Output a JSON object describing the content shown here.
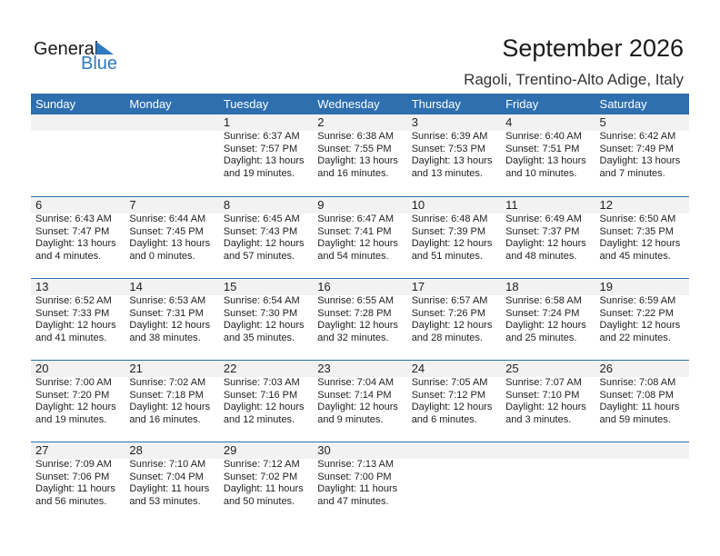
{
  "logo": {
    "general": "General",
    "blue": "Blue"
  },
  "title": "September 2026",
  "subtitle": "Ragoli, Trentino-Alto Adige, Italy",
  "colors": {
    "header": "#2e6fb0",
    "band": "#f2f2f2"
  },
  "weekdays": [
    "Sunday",
    "Monday",
    "Tuesday",
    "Wednesday",
    "Thursday",
    "Friday",
    "Saturday"
  ],
  "weeks": [
    [
      null,
      null,
      {
        "day": "1",
        "sunrise": "Sunrise: 6:37 AM",
        "sunset": "Sunset: 7:57 PM",
        "daylight1": "Daylight: 13 hours",
        "daylight2": "and 19 minutes."
      },
      {
        "day": "2",
        "sunrise": "Sunrise: 6:38 AM",
        "sunset": "Sunset: 7:55 PM",
        "daylight1": "Daylight: 13 hours",
        "daylight2": "and 16 minutes."
      },
      {
        "day": "3",
        "sunrise": "Sunrise: 6:39 AM",
        "sunset": "Sunset: 7:53 PM",
        "daylight1": "Daylight: 13 hours",
        "daylight2": "and 13 minutes."
      },
      {
        "day": "4",
        "sunrise": "Sunrise: 6:40 AM",
        "sunset": "Sunset: 7:51 PM",
        "daylight1": "Daylight: 13 hours",
        "daylight2": "and 10 minutes."
      },
      {
        "day": "5",
        "sunrise": "Sunrise: 6:42 AM",
        "sunset": "Sunset: 7:49 PM",
        "daylight1": "Daylight: 13 hours",
        "daylight2": "and 7 minutes."
      }
    ],
    [
      {
        "day": "6",
        "sunrise": "Sunrise: 6:43 AM",
        "sunset": "Sunset: 7:47 PM",
        "daylight1": "Daylight: 13 hours",
        "daylight2": "and 4 minutes."
      },
      {
        "day": "7",
        "sunrise": "Sunrise: 6:44 AM",
        "sunset": "Sunset: 7:45 PM",
        "daylight1": "Daylight: 13 hours",
        "daylight2": "and 0 minutes."
      },
      {
        "day": "8",
        "sunrise": "Sunrise: 6:45 AM",
        "sunset": "Sunset: 7:43 PM",
        "daylight1": "Daylight: 12 hours",
        "daylight2": "and 57 minutes."
      },
      {
        "day": "9",
        "sunrise": "Sunrise: 6:47 AM",
        "sunset": "Sunset: 7:41 PM",
        "daylight1": "Daylight: 12 hours",
        "daylight2": "and 54 minutes."
      },
      {
        "day": "10",
        "sunrise": "Sunrise: 6:48 AM",
        "sunset": "Sunset: 7:39 PM",
        "daylight1": "Daylight: 12 hours",
        "daylight2": "and 51 minutes."
      },
      {
        "day": "11",
        "sunrise": "Sunrise: 6:49 AM",
        "sunset": "Sunset: 7:37 PM",
        "daylight1": "Daylight: 12 hours",
        "daylight2": "and 48 minutes."
      },
      {
        "day": "12",
        "sunrise": "Sunrise: 6:50 AM",
        "sunset": "Sunset: 7:35 PM",
        "daylight1": "Daylight: 12 hours",
        "daylight2": "and 45 minutes."
      }
    ],
    [
      {
        "day": "13",
        "sunrise": "Sunrise: 6:52 AM",
        "sunset": "Sunset: 7:33 PM",
        "daylight1": "Daylight: 12 hours",
        "daylight2": "and 41 minutes."
      },
      {
        "day": "14",
        "sunrise": "Sunrise: 6:53 AM",
        "sunset": "Sunset: 7:31 PM",
        "daylight1": "Daylight: 12 hours",
        "daylight2": "and 38 minutes."
      },
      {
        "day": "15",
        "sunrise": "Sunrise: 6:54 AM",
        "sunset": "Sunset: 7:30 PM",
        "daylight1": "Daylight: 12 hours",
        "daylight2": "and 35 minutes."
      },
      {
        "day": "16",
        "sunrise": "Sunrise: 6:55 AM",
        "sunset": "Sunset: 7:28 PM",
        "daylight1": "Daylight: 12 hours",
        "daylight2": "and 32 minutes."
      },
      {
        "day": "17",
        "sunrise": "Sunrise: 6:57 AM",
        "sunset": "Sunset: 7:26 PM",
        "daylight1": "Daylight: 12 hours",
        "daylight2": "and 28 minutes."
      },
      {
        "day": "18",
        "sunrise": "Sunrise: 6:58 AM",
        "sunset": "Sunset: 7:24 PM",
        "daylight1": "Daylight: 12 hours",
        "daylight2": "and 25 minutes."
      },
      {
        "day": "19",
        "sunrise": "Sunrise: 6:59 AM",
        "sunset": "Sunset: 7:22 PM",
        "daylight1": "Daylight: 12 hours",
        "daylight2": "and 22 minutes."
      }
    ],
    [
      {
        "day": "20",
        "sunrise": "Sunrise: 7:00 AM",
        "sunset": "Sunset: 7:20 PM",
        "daylight1": "Daylight: 12 hours",
        "daylight2": "and 19 minutes."
      },
      {
        "day": "21",
        "sunrise": "Sunrise: 7:02 AM",
        "sunset": "Sunset: 7:18 PM",
        "daylight1": "Daylight: 12 hours",
        "daylight2": "and 16 minutes."
      },
      {
        "day": "22",
        "sunrise": "Sunrise: 7:03 AM",
        "sunset": "Sunset: 7:16 PM",
        "daylight1": "Daylight: 12 hours",
        "daylight2": "and 12 minutes."
      },
      {
        "day": "23",
        "sunrise": "Sunrise: 7:04 AM",
        "sunset": "Sunset: 7:14 PM",
        "daylight1": "Daylight: 12 hours",
        "daylight2": "and 9 minutes."
      },
      {
        "day": "24",
        "sunrise": "Sunrise: 7:05 AM",
        "sunset": "Sunset: 7:12 PM",
        "daylight1": "Daylight: 12 hours",
        "daylight2": "and 6 minutes."
      },
      {
        "day": "25",
        "sunrise": "Sunrise: 7:07 AM",
        "sunset": "Sunset: 7:10 PM",
        "daylight1": "Daylight: 12 hours",
        "daylight2": "and 3 minutes."
      },
      {
        "day": "26",
        "sunrise": "Sunrise: 7:08 AM",
        "sunset": "Sunset: 7:08 PM",
        "daylight1": "Daylight: 11 hours",
        "daylight2": "and 59 minutes."
      }
    ],
    [
      {
        "day": "27",
        "sunrise": "Sunrise: 7:09 AM",
        "sunset": "Sunset: 7:06 PM",
        "daylight1": "Daylight: 11 hours",
        "daylight2": "and 56 minutes."
      },
      {
        "day": "28",
        "sunrise": "Sunrise: 7:10 AM",
        "sunset": "Sunset: 7:04 PM",
        "daylight1": "Daylight: 11 hours",
        "daylight2": "and 53 minutes."
      },
      {
        "day": "29",
        "sunrise": "Sunrise: 7:12 AM",
        "sunset": "Sunset: 7:02 PM",
        "daylight1": "Daylight: 11 hours",
        "daylight2": "and 50 minutes."
      },
      {
        "day": "30",
        "sunrise": "Sunrise: 7:13 AM",
        "sunset": "Sunset: 7:00 PM",
        "daylight1": "Daylight: 11 hours",
        "daylight2": "and 47 minutes."
      },
      null,
      null,
      null
    ]
  ]
}
